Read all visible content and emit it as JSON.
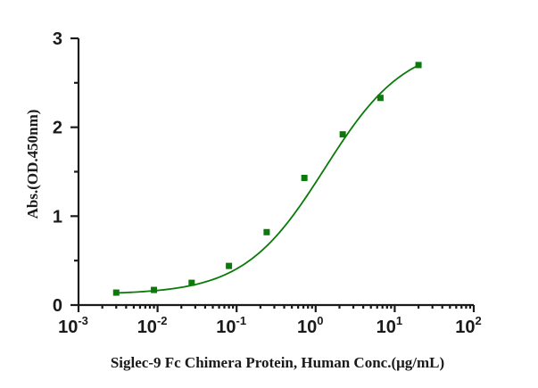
{
  "chart_data": {
    "type": "scatter",
    "title": "",
    "xlabel": "Siglec-9 Fc Chimera Protein, Human Conc.(μg/mL)",
    "ylabel": "Abs.(OD.450nm)",
    "x_scale": "log",
    "xlim": [
      0.001,
      100
    ],
    "ylim": [
      0,
      3
    ],
    "x_ticks": [
      {
        "value": 0.001,
        "base": "10",
        "exp": "-3"
      },
      {
        "value": 0.01,
        "base": "10",
        "exp": "-2"
      },
      {
        "value": 0.1,
        "base": "10",
        "exp": "-1"
      },
      {
        "value": 1,
        "base": "10",
        "exp": "0"
      },
      {
        "value": 10,
        "base": "10",
        "exp": "1"
      },
      {
        "value": 100,
        "base": "10",
        "exp": "2"
      }
    ],
    "y_ticks": [
      "0",
      "1",
      "2",
      "3"
    ],
    "grid": false,
    "color": "#0a7a0a",
    "series": [
      {
        "x": [
          0.003,
          0.009,
          0.027,
          0.08,
          0.24,
          0.72,
          2.2,
          6.6,
          20
        ],
        "y": [
          0.14,
          0.17,
          0.25,
          0.44,
          0.82,
          1.43,
          1.92,
          2.33,
          2.7
        ]
      }
    ],
    "fit": {
      "type": "4PL",
      "bottom": 0.12,
      "top": 2.95,
      "ec50": 1.3,
      "hill": 0.85
    }
  }
}
